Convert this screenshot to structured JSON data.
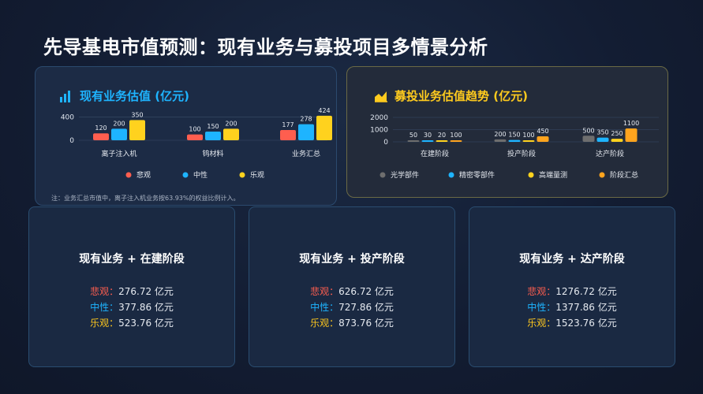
{
  "page_title": "先导基电市值预测：现有业务与募投项目多情景分析",
  "colors": {
    "bear": "#ff5e4f",
    "neutral": "#1eb4ff",
    "bull": "#ffd21e",
    "optics": "#6e6e6e",
    "precision": "#1eb4ff",
    "metrology": "#ffd21e",
    "stage_total": "#ffa41e"
  },
  "icons": {
    "left": "bar-chart-icon",
    "right": "area-chart-icon"
  },
  "left_panel": {
    "title": "现有业务估值 (亿元)",
    "note": "注：业务汇总市值中，离子注入机业务按63.93%的权益比例计入。"
  },
  "right_panel": {
    "title": "募投业务估值趋势 (亿元)"
  },
  "chart_data": [
    {
      "type": "bar",
      "title": "现有业务估值 (亿元)",
      "categories": [
        "离子注入机",
        "钨材料",
        "业务汇总"
      ],
      "series": [
        {
          "name": "悲观",
          "values": [
            120,
            100,
            177
          ]
        },
        {
          "name": "中性",
          "values": [
            200,
            150,
            278
          ]
        },
        {
          "name": "乐观",
          "values": [
            350,
            200,
            424
          ]
        }
      ],
      "y_ticks": [
        "0",
        "400"
      ],
      "ylim": [
        0,
        450
      ],
      "legend_position": "bottom",
      "grid": true
    },
    {
      "type": "bar",
      "title": "募投业务估值趋势 (亿元)",
      "categories": [
        "在建阶段",
        "投产阶段",
        "达产阶段"
      ],
      "series": [
        {
          "name": "光学部件",
          "values": [
            50,
            200,
            500
          ]
        },
        {
          "name": "精密零部件",
          "values": [
            30,
            150,
            350
          ]
        },
        {
          "name": "高端量测",
          "values": [
            20,
            100,
            250
          ]
        },
        {
          "name": "阶段汇总",
          "values": [
            100,
            450,
            1100
          ]
        }
      ],
      "y_ticks": [
        "0",
        "1000",
        "2000"
      ],
      "ylim": [
        0,
        2000
      ],
      "legend_position": "bottom",
      "grid": true
    }
  ],
  "cards": [
    {
      "title": "现有业务 + 在建阶段",
      "lines": [
        {
          "label": "悲观：",
          "value": "276.72 亿元"
        },
        {
          "label": "中性：",
          "value": "377.86 亿元"
        },
        {
          "label": "乐观：",
          "value": "523.76 亿元"
        }
      ]
    },
    {
      "title": "现有业务 + 投产阶段",
      "lines": [
        {
          "label": "悲观：",
          "value": "626.72 亿元"
        },
        {
          "label": "中性：",
          "value": "727.86 亿元"
        },
        {
          "label": "乐观：",
          "value": "873.76 亿元"
        }
      ]
    },
    {
      "title": "现有业务 + 达产阶段",
      "lines": [
        {
          "label": "悲观：",
          "value": "1276.72 亿元"
        },
        {
          "label": "中性：",
          "value": "1377.86 亿元"
        },
        {
          "label": "乐观：",
          "value": "1523.76 亿元"
        }
      ]
    }
  ]
}
